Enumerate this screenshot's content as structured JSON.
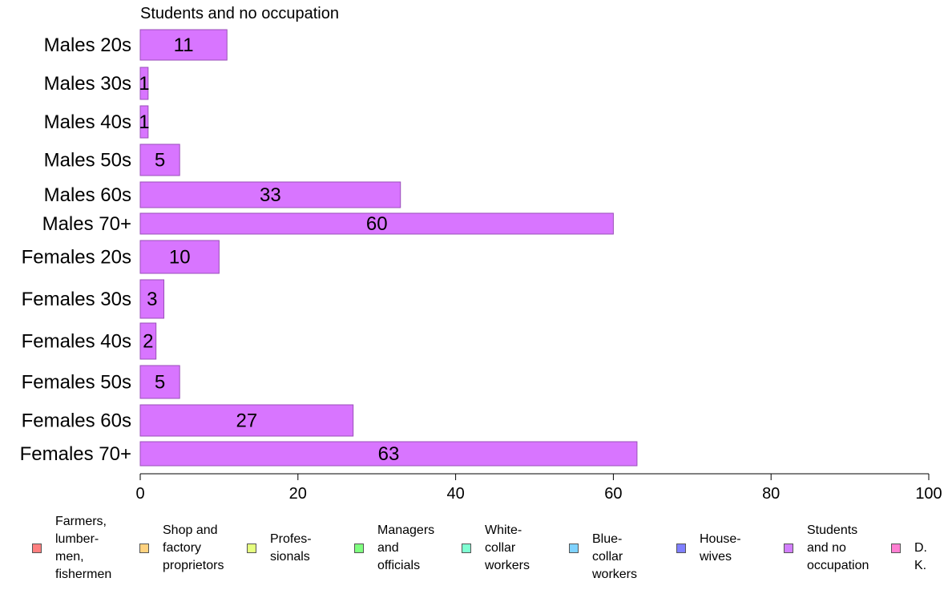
{
  "chart_data": {
    "type": "bar",
    "orientation": "horizontal",
    "title": "Students and no occupation",
    "xlabel": "",
    "ylabel": "",
    "xlim": [
      0,
      100
    ],
    "x_ticks": [
      "0",
      "20",
      "40",
      "60",
      "80",
      "100"
    ],
    "grid": false,
    "categories": [
      "Males 20s",
      "Males 30s",
      "Males 40s",
      "Males 50s",
      "Males 60s",
      "Males 70+",
      "Females 20s",
      "Females 30s",
      "Females 40s",
      "Females 50s",
      "Females 60s",
      "Females 70+"
    ],
    "values": [
      11,
      1,
      1,
      5,
      33,
      60,
      10,
      3,
      2,
      5,
      27,
      63
    ],
    "bar_color": "#d875ff",
    "legend_placement": "bottom",
    "legend": [
      {
        "label": "Farmers,\nlumber-\nmen,\nfishermen",
        "color": "#ff7f7f"
      },
      {
        "label": "Shop and\nfactory\nproprietors",
        "color": "#ffd27f"
      },
      {
        "label": "Profes-\nsionals",
        "color": "#e5ff7f"
      },
      {
        "label": "Managers\nand\nofficials",
        "color": "#7fff7f"
      },
      {
        "label": "White-\ncollar\nworkers",
        "color": "#7fffd2"
      },
      {
        "label": "Blue-collar\nworkers",
        "color": "#7fd2ff"
      },
      {
        "label": "House-\nwives",
        "color": "#7f7fff"
      },
      {
        "label": "Students\nand no\noccupation",
        "color": "#d27fff"
      },
      {
        "label": "D. K.",
        "color": "#ff7fd2"
      }
    ]
  }
}
